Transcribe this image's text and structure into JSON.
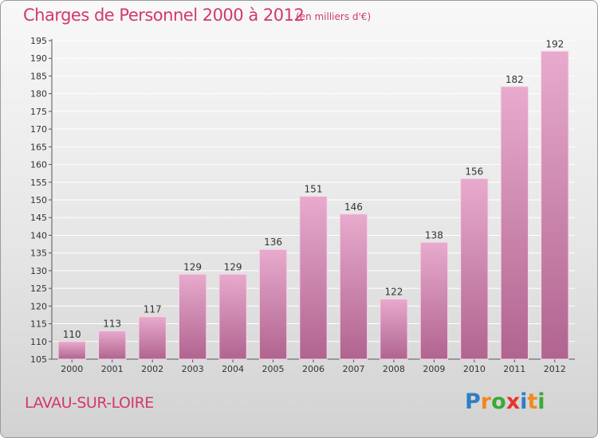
{
  "header": {
    "title": "Charges de Personnel 2000 à 2012",
    "subtitle": "(en milliers d'€)"
  },
  "footer": {
    "commune": "LAVAU-SUR-LOIRE",
    "logo": {
      "text": "Proxiti",
      "letter_colors": [
        "#2f7fc1",
        "#f08a1e",
        "#3aa935",
        "#e8342e",
        "#2f7fc1",
        "#f08a1e",
        "#3aa935"
      ]
    }
  },
  "colors": {
    "accent": "#d2386e",
    "bar_top": "#e8aacd",
    "bar_bottom": "#b0648f",
    "grid": "#ffffff"
  },
  "chart_data": {
    "type": "bar",
    "title": "Charges de Personnel 2000 à 2012",
    "subtitle": "(en milliers d'€)",
    "categories": [
      "2000",
      "2001",
      "2002",
      "2003",
      "2004",
      "2005",
      "2006",
      "2007",
      "2008",
      "2009",
      "2010",
      "2011",
      "2012"
    ],
    "values": [
      110,
      113,
      117,
      129,
      129,
      136,
      151,
      146,
      122,
      138,
      156,
      182,
      192
    ],
    "ylim": [
      105,
      195
    ],
    "yticks": [
      105,
      110,
      115,
      120,
      125,
      130,
      135,
      140,
      145,
      150,
      155,
      160,
      165,
      170,
      175,
      180,
      185,
      190,
      195
    ],
    "grid": true,
    "data_labels": true
  }
}
